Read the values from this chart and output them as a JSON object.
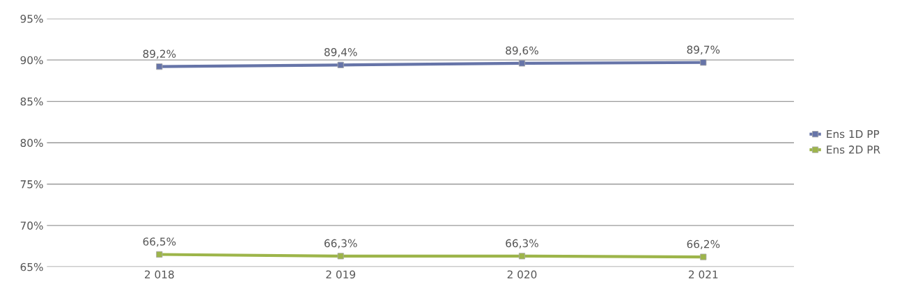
{
  "chart_data": {
    "type": "line",
    "categories": [
      "2 018",
      "2 019",
      "2 020",
      "2 021"
    ],
    "series": [
      {
        "name": "Ens 1D PP",
        "color": "#6674a8",
        "values": [
          89.2,
          89.4,
          89.6,
          89.7
        ],
        "value_labels": [
          "89,2%",
          "89,4%",
          "89,6%",
          "89,7%"
        ]
      },
      {
        "name": "Ens 2D PR",
        "color": "#9db54a",
        "values": [
          66.5,
          66.3,
          66.3,
          66.2
        ],
        "value_labels": [
          "66,5%",
          "66,3%",
          "66,3%",
          "66,2%"
        ]
      }
    ],
    "ylim": [
      65,
      95
    ],
    "yticks": [
      {
        "value": 65,
        "label": "65%"
      },
      {
        "value": 70,
        "label": "70%"
      },
      {
        "value": 75,
        "label": "75%"
      },
      {
        "value": 80,
        "label": "80%"
      },
      {
        "value": 85,
        "label": "85%"
      },
      {
        "value": 90,
        "label": "90%"
      },
      {
        "value": 95,
        "label": "95%"
      }
    ],
    "grid": "y",
    "legend": "right",
    "marker": "square",
    "line_style": "solid"
  }
}
